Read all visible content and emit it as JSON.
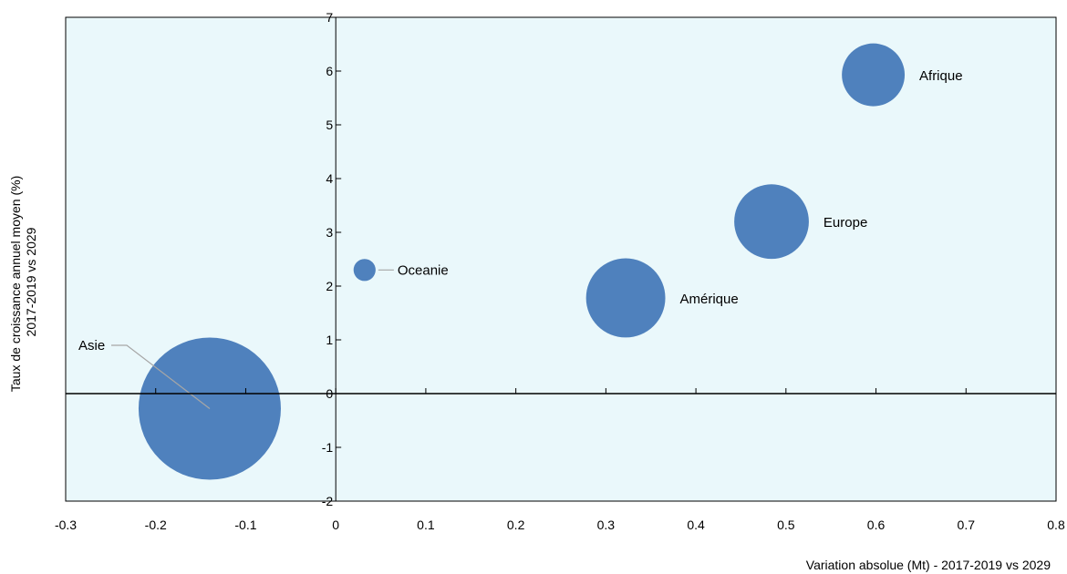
{
  "chart_data": {
    "type": "scatter",
    "subtype": "bubble",
    "title": "",
    "xlabel": "Variation absolue (Mt) - 2017-2019 vs 2029",
    "ylabel_line1": "Taux de croissance annuel moyen (%)",
    "ylabel_line2": "2017-2019 vs 2029",
    "xlim": [
      -0.3,
      0.8
    ],
    "ylim": [
      -2,
      7
    ],
    "x_ticks": [
      "-0.3",
      "-0.2",
      "-0.1",
      "0",
      "0.1",
      "0.2",
      "0.3",
      "0.4",
      "0.5",
      "0.6",
      "0.7",
      "0.8"
    ],
    "y_ticks": [
      "-2",
      "-1",
      "0",
      "1",
      "2",
      "3",
      "4",
      "5",
      "6",
      "7"
    ],
    "grid": false,
    "legend": "none",
    "colors": {
      "plot_background": "#EAF8FB",
      "bubble": "#4F81BD",
      "axis": "#000000",
      "leader_line": "#A6A6A6"
    },
    "points": [
      {
        "label": "Asie",
        "x": -0.14,
        "y": -0.28,
        "size": 1.0
      },
      {
        "label": "Oceanie",
        "x": 0.032,
        "y": 2.3,
        "size": 0.024
      },
      {
        "label": "Amérique",
        "x": 0.322,
        "y": 1.78,
        "size": 0.31
      },
      {
        "label": "Europe",
        "x": 0.484,
        "y": 3.2,
        "size": 0.275
      },
      {
        "label": "Afrique",
        "x": 0.597,
        "y": 5.93,
        "size": 0.195
      }
    ]
  }
}
